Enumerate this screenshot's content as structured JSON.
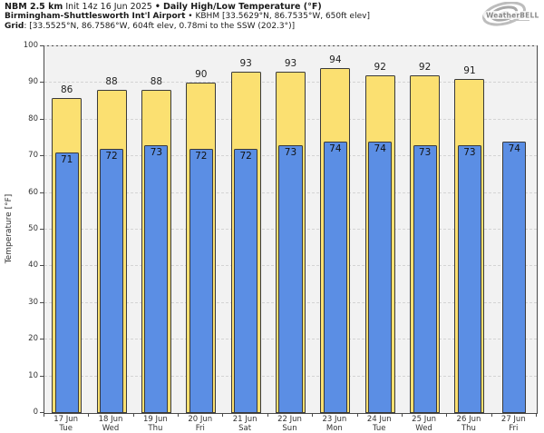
{
  "header": {
    "line1": {
      "model": "NBM 2.5 km",
      "init": "Init 14z 16 Jun 2025",
      "sep": "•",
      "product": "Daily High/Low Temperature (°F)"
    },
    "line2": {
      "station": "Birmingham-Shuttlesworth Int'l Airport",
      "sep": "•",
      "details": "KBHM [33.5629°N, 86.7535°W, 650ft elev]"
    },
    "line3": {
      "label": "Grid",
      "details": ": [33.5525°N, 86.7586°W, 604ft elev, 0.78mi to the SSW (202.3°)]"
    }
  },
  "logo": {
    "text": "WeatherBELL"
  },
  "chart_data": {
    "type": "bar",
    "title": "NBM 2.5 km Init 14z 16 Jun 2025 • Daily High/Low Temperature (°F)",
    "subtitle": "Birmingham-Shuttlesworth Int'l Airport • KBHM [33.5629°N, 86.7535°W, 650ft elev]",
    "categories": [
      "17 Jun",
      "18 Jun",
      "19 Jun",
      "20 Jun",
      "21 Jun",
      "22 Jun",
      "23 Jun",
      "24 Jun",
      "25 Jun",
      "26 Jun",
      "27 Jun"
    ],
    "category_days": [
      "Tue",
      "Wed",
      "Thu",
      "Fri",
      "Sat",
      "Sun",
      "Mon",
      "Tue",
      "Wed",
      "Thu",
      "Fri"
    ],
    "series": [
      {
        "name": "Daily High",
        "color": "#fbe071",
        "values": [
          86,
          88,
          88,
          90,
          93,
          93,
          94,
          92,
          92,
          91,
          null
        ]
      },
      {
        "name": "Daily Low",
        "color": "#5b8ee4",
        "values": [
          71,
          72,
          73,
          72,
          72,
          73,
          74,
          74,
          73,
          73,
          74
        ]
      }
    ],
    "xlabel": "",
    "ylabel": "Temperature [°F]",
    "ylim": [
      0,
      100
    ],
    "ytick_step": 10,
    "grid": "horizontal-dashed",
    "legend": "none",
    "plot_background": "#f2f2f2"
  }
}
